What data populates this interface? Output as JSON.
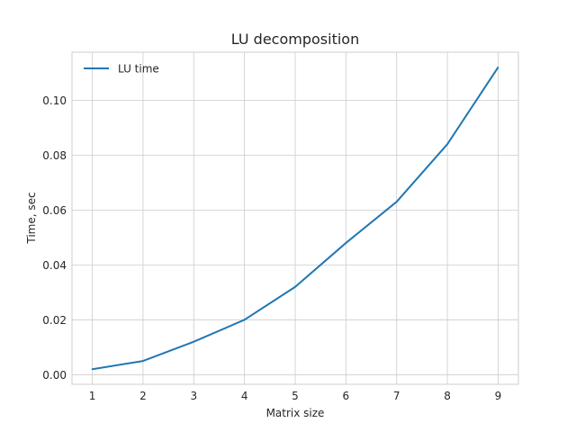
{
  "chart_data": {
    "type": "line",
    "title": "LU decomposition",
    "xlabel": "Matrix size",
    "ylabel": "Time, sec",
    "x": [
      1,
      2,
      3,
      4,
      5,
      6,
      7,
      8,
      9
    ],
    "series": [
      {
        "name": "LU time",
        "values": [
          0.002,
          0.005,
          0.012,
          0.02,
          0.032,
          0.048,
          0.063,
          0.084,
          0.112
        ],
        "color": "#1f77b4"
      }
    ],
    "xticks": [
      1,
      2,
      3,
      4,
      5,
      6,
      7,
      8,
      9
    ],
    "xtick_labels": [
      "1",
      "2",
      "3",
      "4",
      "5",
      "6",
      "7",
      "8",
      "9"
    ],
    "yticks": [
      0.0,
      0.02,
      0.04,
      0.06,
      0.08,
      0.1
    ],
    "ytick_labels": [
      "0.00",
      "0.02",
      "0.04",
      "0.06",
      "0.08",
      "0.10"
    ],
    "xlim": [
      0.6,
      9.4
    ],
    "ylim": [
      -0.0035,
      0.1175
    ],
    "grid": true,
    "legend_position": "top-left"
  }
}
